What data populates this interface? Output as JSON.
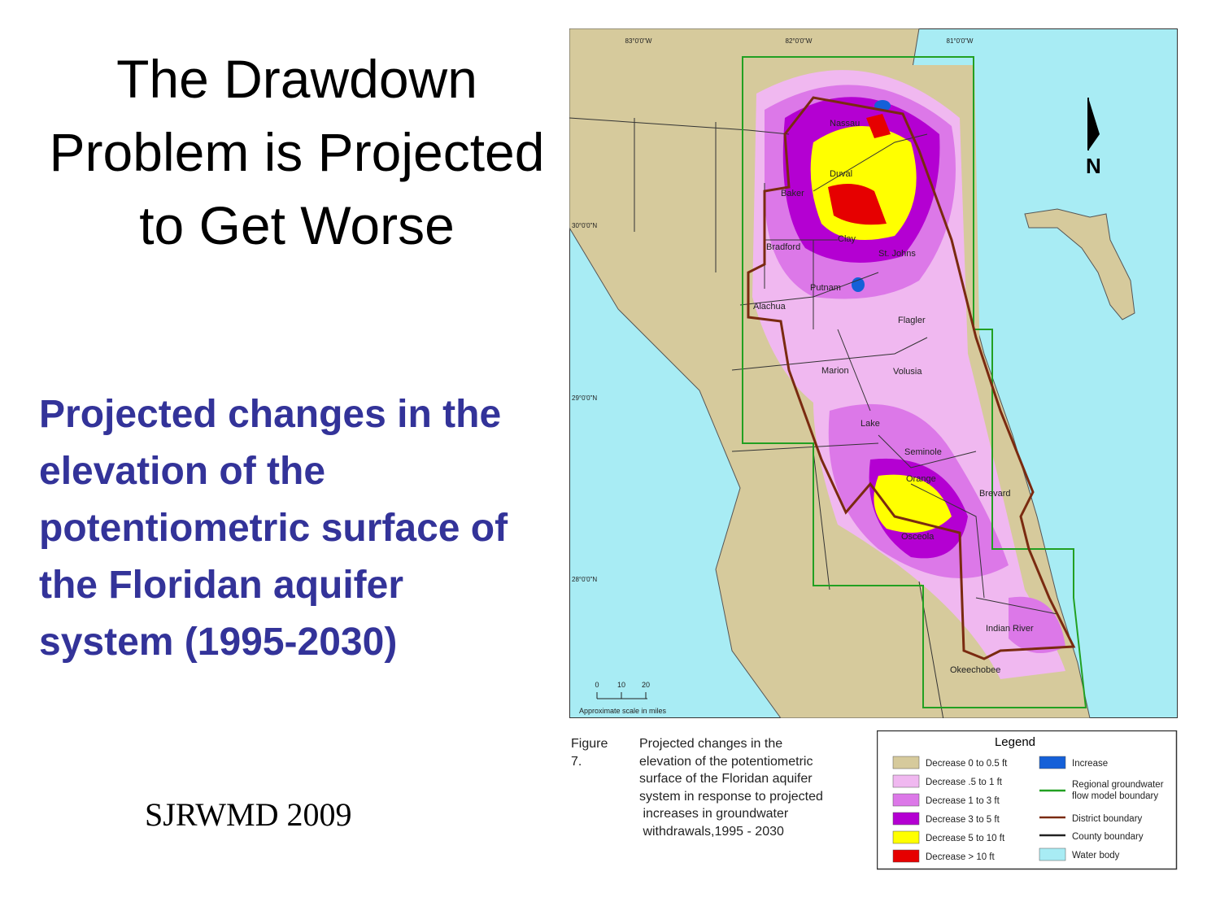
{
  "slide": {
    "title": "The Drawdown Problem is Projected to Get Worse",
    "subtitle": "Projected changes in the elevation of the potentiometric surface of the Floridan aquifer system (1995-2030)",
    "source": "SJRWMD 2009"
  },
  "map": {
    "longitudes": [
      "83°0'0\"W",
      "82°0'0\"W",
      "81°0'0\"W"
    ],
    "latitudes": [
      "30°0'0\"N",
      "29°0'0\"N",
      "28°0'0\"N"
    ],
    "counties": [
      "Nassau",
      "Duval",
      "Baker",
      "Clay",
      "St. Johns",
      "Bradford",
      "Putnam",
      "Alachua",
      "Flagler",
      "Marion",
      "Volusia",
      "Lake",
      "Seminole",
      "Orange",
      "Brevard",
      "Osceola",
      "Indian River",
      "Okeechobee"
    ],
    "north": "N",
    "scale": {
      "ticks": [
        "0",
        "10",
        "20"
      ],
      "label": "Approximate scale in miles"
    }
  },
  "figure": {
    "label": "Figure 7.",
    "caption": [
      "Projected changes in the",
      "elevation of the potentiometric",
      "surface of the Floridan aquifer",
      "system in response to projected",
      " increases in groundwater",
      " withdrawals,1995 - 2030"
    ]
  },
  "legend": {
    "title": "Legend",
    "items": [
      {
        "label": "Decrease 0 to 0.5 ft",
        "color": "#d6ca9c",
        "symbol": "fill"
      },
      {
        "label": "Decrease .5 to 1 ft",
        "color": "#f0b8f0",
        "symbol": "fill"
      },
      {
        "label": "Decrease 1 to 3 ft",
        "color": "#dc78e8",
        "symbol": "fill"
      },
      {
        "label": "Decrease 3 to 5 ft",
        "color": "#b400d2",
        "symbol": "fill"
      },
      {
        "label": "Decrease 5 to 10 ft",
        "color": "#ffff00",
        "symbol": "fill"
      },
      {
        "label": "Decrease > 10 ft",
        "color": "#e60000",
        "symbol": "fill"
      },
      {
        "label": "Increase",
        "color": "#1560d8",
        "symbol": "fill"
      },
      {
        "label": [
          "Regional groundwater",
          "flow model boundary"
        ],
        "color": "#22a022",
        "symbol": "line"
      },
      {
        "label": "District boundary",
        "color": "#7a2a10",
        "symbol": "line"
      },
      {
        "label": "County boundary",
        "color": "#222222",
        "symbol": "line"
      },
      {
        "label": "Water body",
        "color": "#a8ecf4",
        "symbol": "fill"
      }
    ]
  }
}
